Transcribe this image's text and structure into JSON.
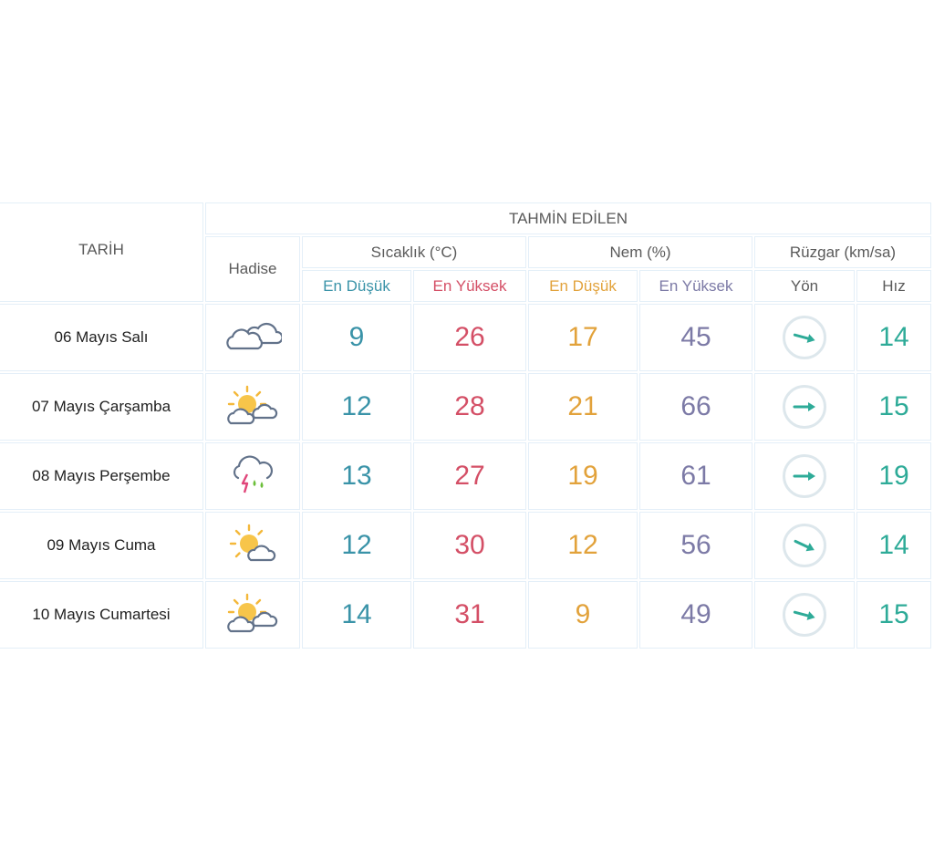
{
  "header": {
    "tarih": "TARİH",
    "title": "TAHMİN EDİLEN",
    "hadise": "Hadise",
    "temperature": "Sıcaklık (°C)",
    "humidity": "Nem (%)",
    "wind": "Rüzgar (km/sa)",
    "temp_low": "En Düşük",
    "temp_high": "En Yüksek",
    "hum_low": "En Düşük",
    "hum_high": "En Yüksek",
    "wind_dir": "Yön",
    "wind_speed": "Hız"
  },
  "colors": {
    "temp_low": "#3a93a8",
    "temp_high": "#d44f66",
    "hum_low": "#e2a23b",
    "hum_high": "#7c7aa6",
    "wind": "#2eab98",
    "grid": "#e4eff8"
  },
  "rows": [
    {
      "date": "06 Mayıs Salı",
      "icon": "cloudy-icon",
      "temp_low": "9",
      "temp_high": "26",
      "hum_low": "17",
      "hum_high": "45",
      "wind_dir_deg": 15,
      "wind_speed": "14"
    },
    {
      "date": "07 Mayıs Çarşamba",
      "icon": "partly-cloudy-icon",
      "temp_low": "12",
      "temp_high": "28",
      "hum_low": "21",
      "hum_high": "66",
      "wind_dir_deg": 0,
      "wind_speed": "15"
    },
    {
      "date": "08 Mayıs Perşembe",
      "icon": "thunderstorm-rain-icon",
      "temp_low": "13",
      "temp_high": "27",
      "hum_low": "19",
      "hum_high": "61",
      "wind_dir_deg": 0,
      "wind_speed": "19"
    },
    {
      "date": "09 Mayıs Cuma",
      "icon": "mostly-sunny-icon",
      "temp_low": "12",
      "temp_high": "30",
      "hum_low": "12",
      "hum_high": "56",
      "wind_dir_deg": 25,
      "wind_speed": "14"
    },
    {
      "date": "10 Mayıs Cumartesi",
      "icon": "partly-cloudy-icon",
      "temp_low": "14",
      "temp_high": "31",
      "hum_low": "9",
      "hum_high": "49",
      "wind_dir_deg": 15,
      "wind_speed": "15"
    }
  ]
}
